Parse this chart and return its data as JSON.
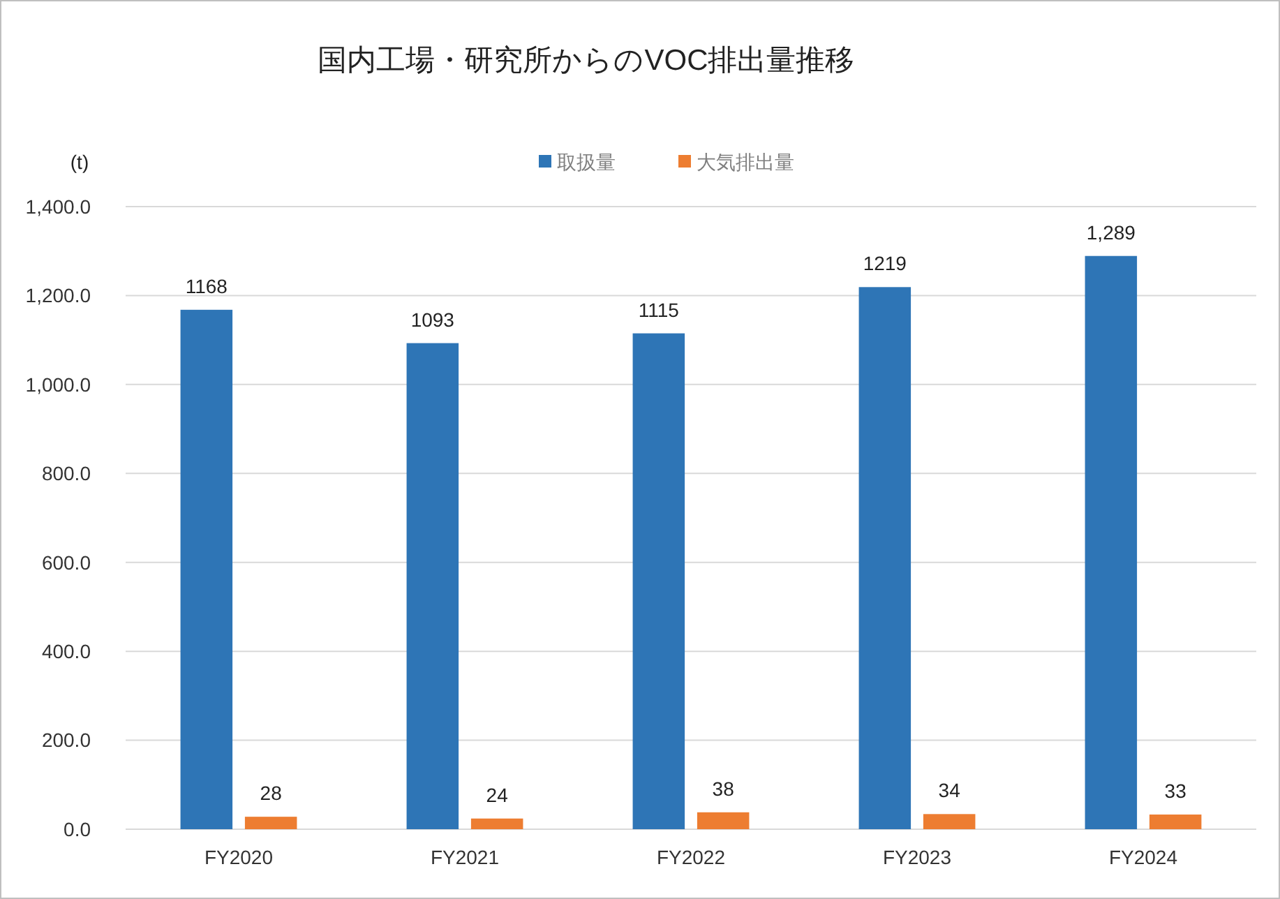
{
  "chart_data": {
    "type": "bar",
    "title": "国内工場・研究所からのVOC排出量推移",
    "ylabel": "(t)",
    "categories": [
      "FY2020",
      "FY2021",
      "FY2022",
      "FY2023",
      "FY2024"
    ],
    "series": [
      {
        "name": "取扱量",
        "color": "#2e75b6",
        "values": [
          1168,
          1093,
          1115,
          1219,
          1289
        ],
        "value_labels": [
          "1168",
          "1093",
          "1115",
          "1219",
          "1,289"
        ]
      },
      {
        "name": "大気排出量",
        "color": "#ed7d31",
        "values": [
          28,
          24,
          38,
          34,
          33
        ],
        "value_labels": [
          "28",
          "24",
          "38",
          "34",
          "33"
        ]
      }
    ],
    "ylim": [
      0,
      1400
    ],
    "yticks": [
      {
        "value": 0,
        "label": "0.0"
      },
      {
        "value": 200,
        "label": "200.0"
      },
      {
        "value": 400,
        "label": "400.0"
      },
      {
        "value": 600,
        "label": "600.0"
      },
      {
        "value": 800,
        "label": "800.0"
      },
      {
        "value": 1000,
        "label": "1,000.0"
      },
      {
        "value": 1200,
        "label": "1,200.0"
      },
      {
        "value": 1400,
        "label": "1,400.0"
      }
    ],
    "grid": "y",
    "legend": "top"
  }
}
